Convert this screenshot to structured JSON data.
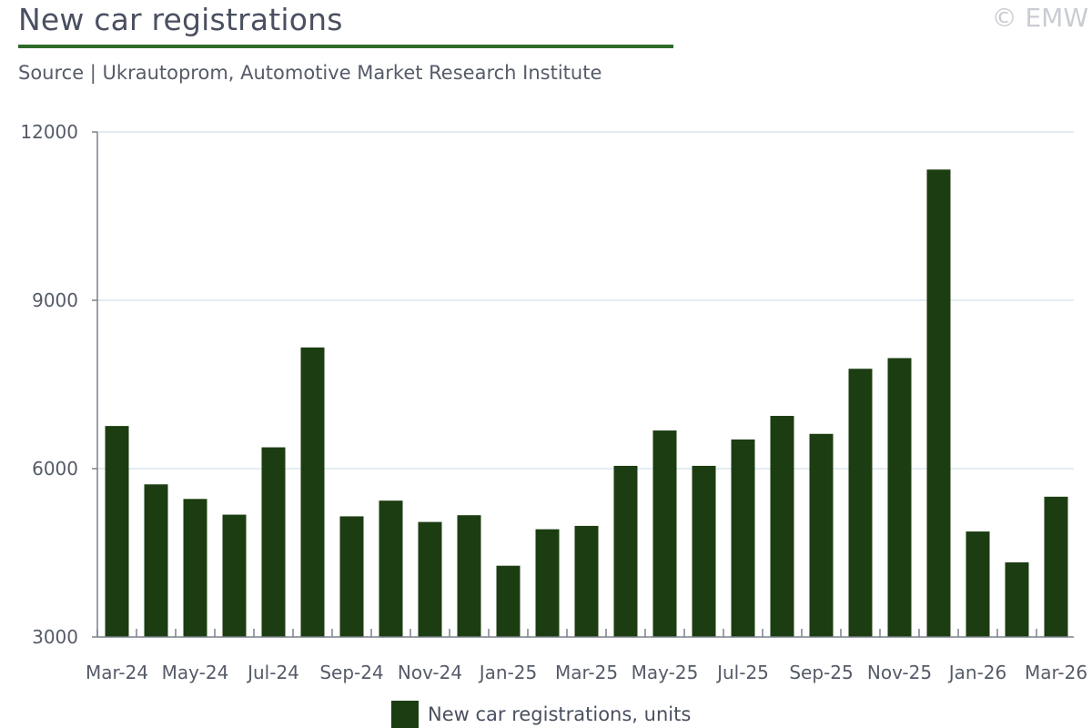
{
  "header": {
    "title": "New car registrations",
    "source": "Source | Ukrautoprom, Automotive Market Research Institute",
    "copyright": "© EMW"
  },
  "colors": {
    "bar": "#1c3d12",
    "title_rule": "#2e6b2a",
    "grid": "#dbe5ee",
    "axis": "#7a808c"
  },
  "chart_data": {
    "type": "bar",
    "title": "New car registrations",
    "categories": [
      "Mar-24",
      "Apr-24",
      "May-24",
      "Jun-24",
      "Jul-24",
      "Aug-24",
      "Sep-24",
      "Oct-24",
      "Nov-24",
      "Dec-24",
      "Jan-25",
      "Feb-25",
      "Mar-25",
      "Apr-25",
      "May-25",
      "Jun-25",
      "Jul-25",
      "Aug-25",
      "Sep-25",
      "Oct-25",
      "Nov-25",
      "Dec-25",
      "Jan-26",
      "Feb-26",
      "Mar-26"
    ],
    "tick_labels": [
      "Mar-24",
      "May-24",
      "Jul-24",
      "Sep-24",
      "Nov-24",
      "Jan-25",
      "Mar-25",
      "May-25",
      "Jul-25",
      "Sep-25",
      "Nov-25",
      "Jan-26",
      "Mar-26"
    ],
    "series": [
      {
        "name": "New car registrations, units",
        "values": [
          6760,
          5720,
          5460,
          5180,
          6380,
          8160,
          5150,
          5430,
          5050,
          5170,
          4270,
          4920,
          4980,
          6050,
          6680,
          6050,
          6520,
          6940,
          6620,
          7780,
          7970,
          11330,
          4880,
          4330,
          5500
        ]
      }
    ],
    "yticks": [
      3000,
      6000,
      9000,
      12000
    ],
    "ylim": [
      3000,
      12000
    ],
    "grid": true,
    "legend": "bottom-center"
  }
}
